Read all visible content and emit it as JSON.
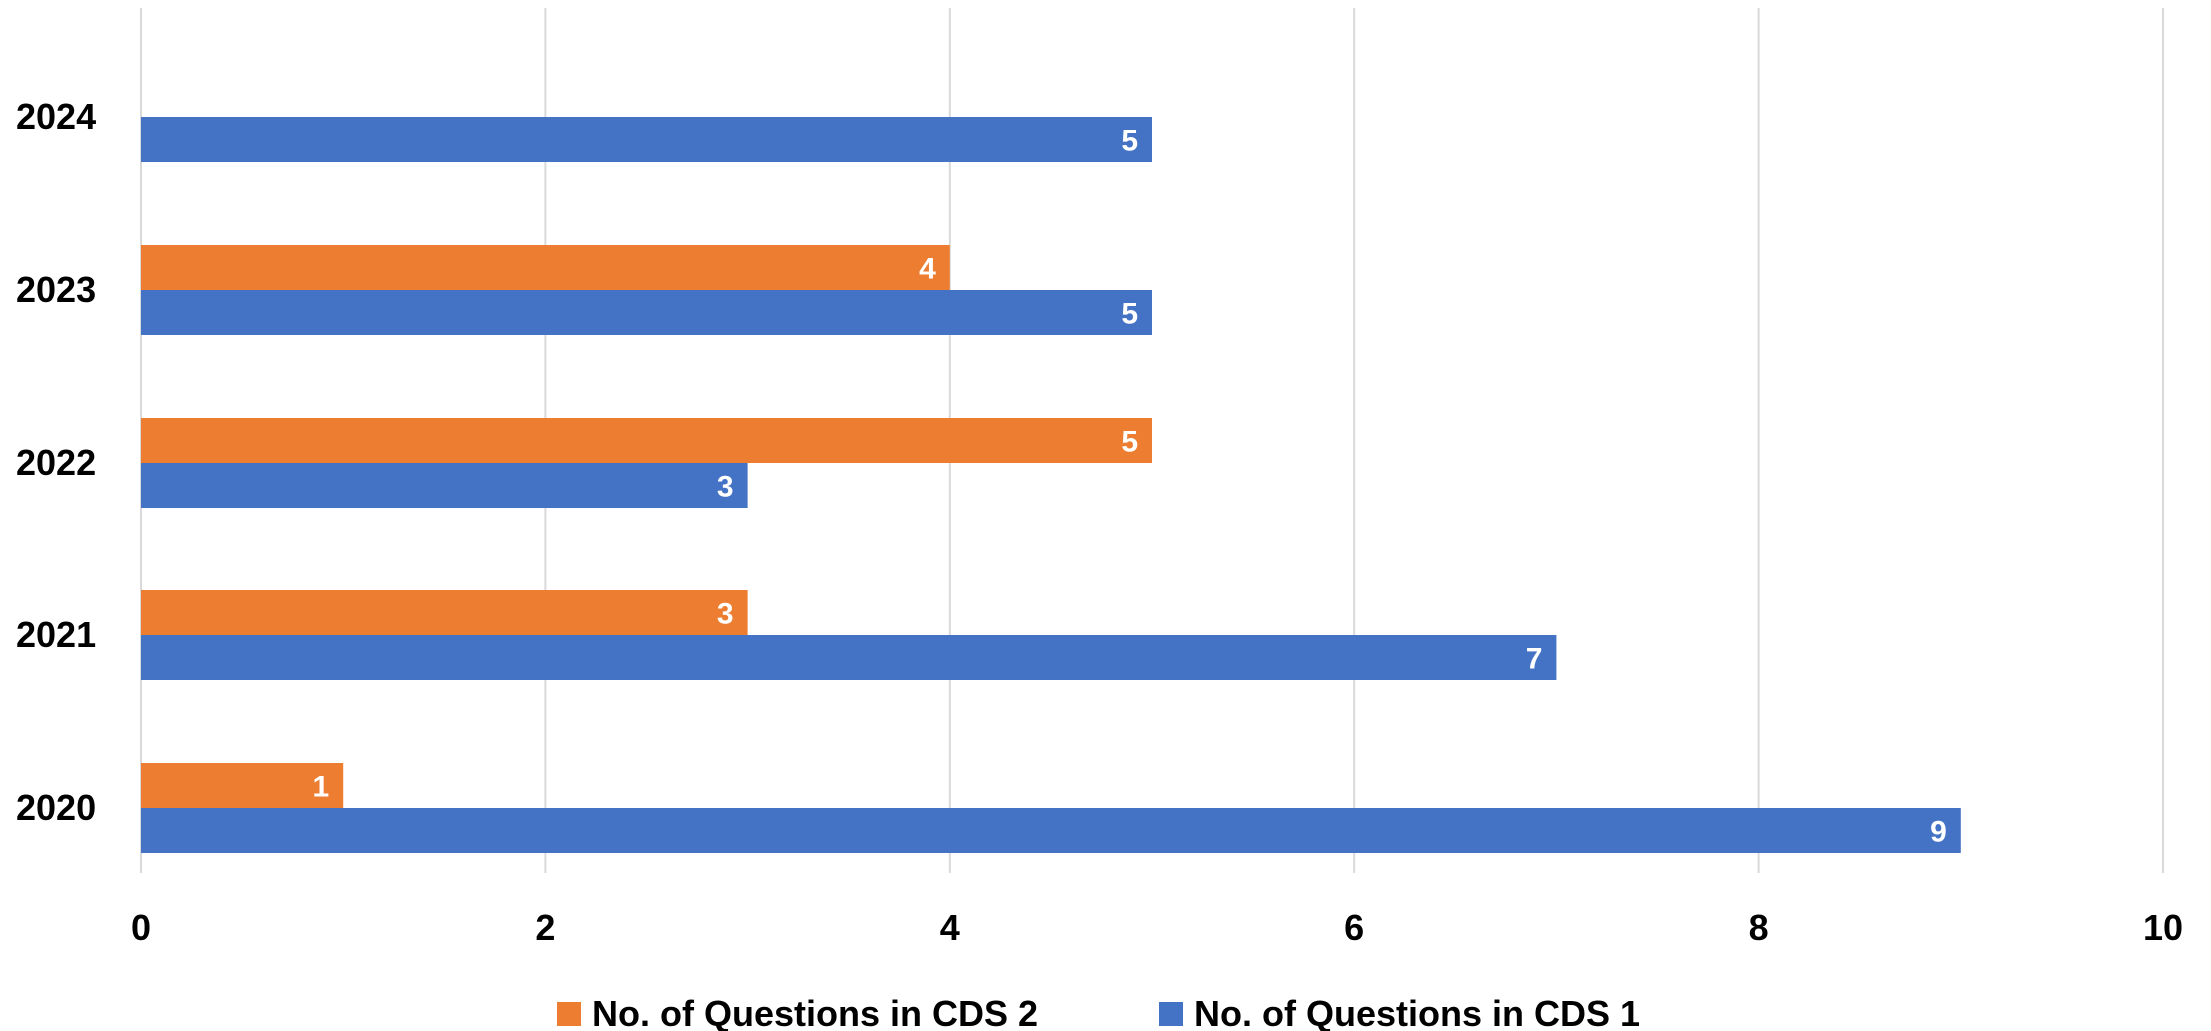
{
  "chart_data": {
    "type": "bar",
    "orientation": "horizontal",
    "categories": [
      "2024",
      "2023",
      "2022",
      "2021",
      "2020"
    ],
    "series": [
      {
        "name": "No. of Questions in CDS 2",
        "color": "#ED7D31",
        "values": [
          null,
          4,
          5,
          3,
          1
        ]
      },
      {
        "name": "No. of Questions in CDS 1",
        "color": "#4472C4",
        "values": [
          5,
          5,
          3,
          7,
          9
        ]
      }
    ],
    "xlim": [
      0,
      10
    ],
    "xticks": [
      "0",
      "2",
      "4",
      "6",
      "8",
      "10"
    ],
    "title": "",
    "xlabel": "",
    "ylabel": "",
    "grid": "vertical",
    "legend": "bottom"
  }
}
